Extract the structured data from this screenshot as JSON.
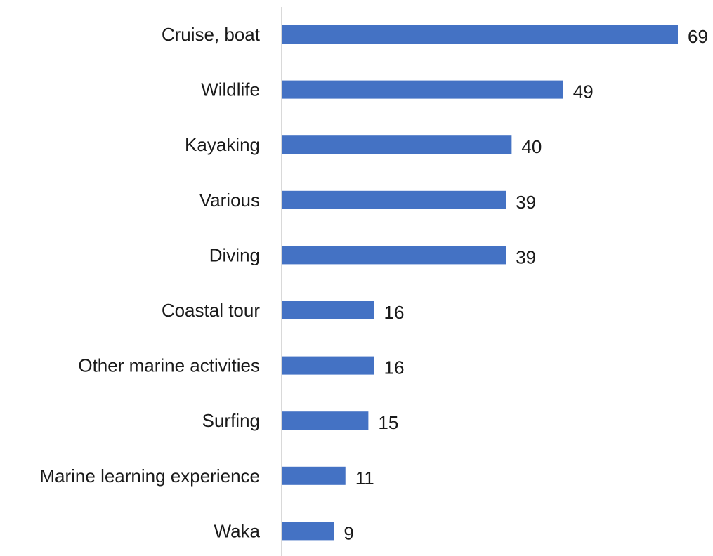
{
  "chart_data": {
    "type": "bar",
    "orientation": "horizontal",
    "title": "",
    "xlabel": "",
    "ylabel": "",
    "categories": [
      "Cruise, boat",
      "Wildlife",
      "Kayaking",
      "Various",
      "Diving",
      "Coastal tour",
      "Other marine activities",
      "Surfing",
      "Marine learning experience",
      "Waka"
    ],
    "values": [
      69,
      49,
      40,
      39,
      39,
      16,
      16,
      15,
      11,
      9
    ],
    "xlim": [
      0,
      69
    ],
    "grid": false,
    "legend": "none",
    "data_labels": true,
    "colors": {
      "bar": "#4472C4",
      "axis": "#d9d9d9",
      "text": "#1a1a1a"
    }
  }
}
